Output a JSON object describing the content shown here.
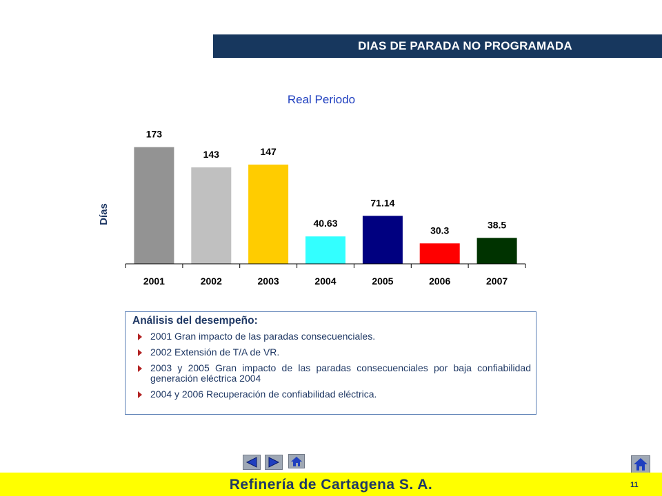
{
  "header": {
    "title": "DIAS DE PARADA NO PROGRAMADA"
  },
  "chart_data": {
    "type": "bar",
    "title": "Real Periodo",
    "ylabel": "Días",
    "xlabel": "",
    "categories": [
      "2001",
      "2002",
      "2003",
      "2004",
      "2005",
      "2006",
      "2007"
    ],
    "values": [
      173,
      143,
      147,
      40.63,
      71.14,
      30.3,
      38.5
    ],
    "value_labels": [
      "173",
      "143",
      "147",
      "40.63",
      "71.14",
      "30.3",
      "38.5"
    ],
    "colors": [
      "#939393",
      "#c0c0c0",
      "#ffcc00",
      "#33ffff",
      "#000080",
      "#ff0000",
      "#003300"
    ],
    "ylim": [
      0,
      180
    ],
    "grid": false,
    "legend": "none"
  },
  "analysis": {
    "title": "Análisis del desempeño:",
    "items": [
      "2001 Gran impacto de las paradas consecuenciales.",
      "2002 Extensión de T/A de VR.",
      "2003 y 2005  Gran impacto de las paradas consecuenciales por baja confiabilidad generación eléctrica 2004",
      "2004 y 2006 Recuperación de confiabilidad eléctrica."
    ]
  },
  "nav": {
    "prev_icon": "triangle-left-icon",
    "next_icon": "triangle-right-icon",
    "home_icon": "home-icon"
  },
  "footer": {
    "title": "Refinería de Cartagena S. A.",
    "page_number": "11"
  },
  "colors": {
    "title_bar": "#17375e",
    "footer": "#ffff00",
    "text_dark": "#1f3864",
    "bullet": "#b22222"
  }
}
